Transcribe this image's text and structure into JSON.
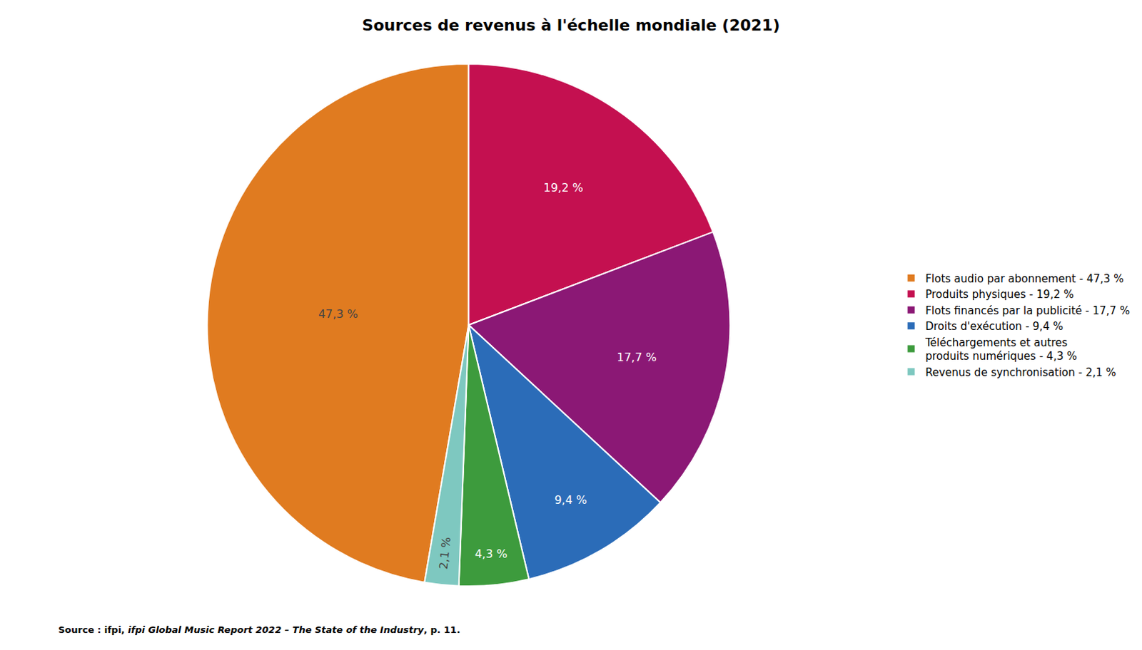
{
  "chart_data": {
    "type": "pie",
    "title": "Sources de revenus à l'échelle mondiale (2021)",
    "categories": [
      "Flots audio par abonnement - 47,3 %",
      "Produits physiques - 19,2 %",
      "Flots financés par la publicité - 17,7 %",
      "Droits d'exécution - 9,4 %",
      "Téléchargements et autres\nproduits numériques - 4,3 %",
      "Revenus de synchronisation - 2,1 %"
    ],
    "values": [
      47.3,
      19.2,
      17.7,
      9.4,
      4.3,
      2.1
    ],
    "value_labels": [
      "47,3 %",
      "19,2 %",
      "17,7 %",
      "9,4 %",
      "4,3 %",
      "2,1 %"
    ],
    "colors": [
      "#E07B20",
      "#C41050",
      "#8B1875",
      "#2B6CB8",
      "#3D9B3D",
      "#7EC8C0"
    ],
    "data_labels": true,
    "legend": "right",
    "annotations": [
      "Source : ifpi, ",
      "ifpi Global Music Report 2022 – The State of the Industry",
      ", p. 11."
    ]
  }
}
